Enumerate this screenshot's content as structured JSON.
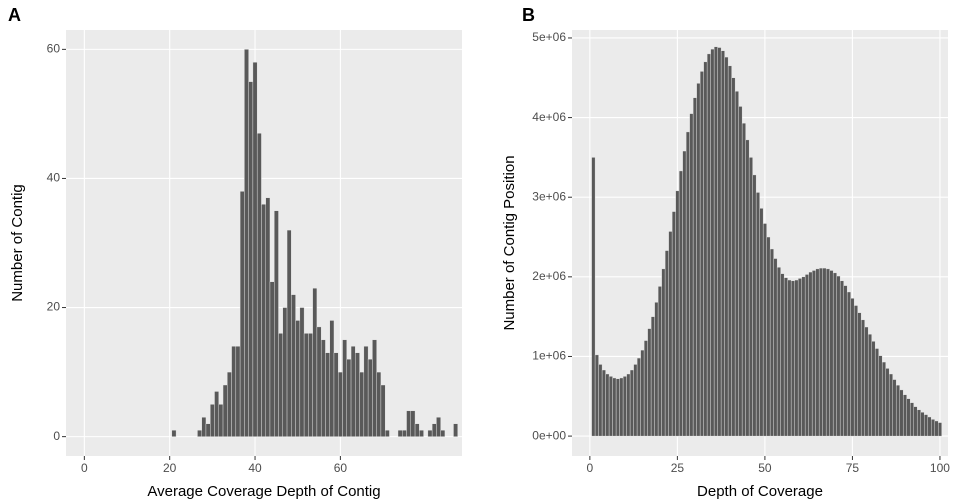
{
  "chart_data": [
    {
      "type": "histogram",
      "label": "A",
      "x_label": "Average Coverage Depth of Contig",
      "y_label": "Number of Contig",
      "color": "#595959",
      "bins": [
        20.5,
        21.5,
        22.5,
        23.5,
        24.5,
        25.5,
        26.5,
        27.5,
        28.5,
        29.5,
        30.5,
        31.5,
        32.5,
        33.5,
        34.5,
        35.5,
        36.5,
        37.5,
        38.5,
        39.5,
        40.5,
        41.5,
        42.5,
        43.5,
        44.5,
        45.5,
        46.5,
        47.5,
        48.5,
        49.5,
        50.5,
        51.5,
        52.5,
        53.5,
        54.5,
        55.5,
        56.5,
        57.5,
        58.5,
        59.5,
        60.5,
        61.5,
        62.5,
        63.5,
        64.5,
        65.5,
        66.5,
        67.5,
        68.5,
        69.5,
        70.5,
        71.5,
        72.5,
        73.5,
        74.5,
        75.5,
        76.5,
        77.5,
        78.5,
        79.5,
        80.5,
        81.5,
        82.5,
        83.5,
        84.5,
        85.5,
        86.5,
        87.5
      ],
      "values": [
        1,
        0,
        0,
        0,
        0,
        0,
        1,
        3,
        2,
        5,
        7,
        5,
        8,
        10,
        14,
        14,
        38,
        60,
        55,
        58,
        47,
        36,
        37,
        24,
        35,
        16,
        20,
        32,
        22,
        18,
        20,
        16,
        16,
        23,
        17,
        15,
        13,
        18,
        13,
        10,
        15,
        12,
        14,
        13,
        10,
        14,
        12,
        15,
        10,
        8,
        1,
        0,
        0,
        1,
        1,
        4,
        4,
        2,
        1,
        0,
        1,
        2,
        3,
        1,
        0,
        0,
        2
      ],
      "xlim": [
        -4.3,
        88.5
      ],
      "xticks": [
        0,
        20,
        40,
        60
      ],
      "ylim": [
        -3,
        63
      ],
      "yticks": [
        0,
        20,
        40,
        60
      ],
      "grid": true
    },
    {
      "type": "histogram",
      "label": "B",
      "x_label": "Depth of Coverage",
      "y_label": "Number of Contig Position",
      "color": "#595959",
      "bins": [
        0.5,
        1.5,
        2.5,
        3.5,
        4.5,
        5.5,
        6.5,
        7.5,
        8.5,
        9.5,
        10.5,
        11.5,
        12.5,
        13.5,
        14.5,
        15.5,
        16.5,
        17.5,
        18.5,
        19.5,
        20.5,
        21.5,
        22.5,
        23.5,
        24.5,
        25.5,
        26.5,
        27.5,
        28.5,
        29.5,
        30.5,
        31.5,
        32.5,
        33.5,
        34.5,
        35.5,
        36.5,
        37.5,
        38.5,
        39.5,
        40.5,
        41.5,
        42.5,
        43.5,
        44.5,
        45.5,
        46.5,
        47.5,
        48.5,
        49.5,
        50.5,
        51.5,
        52.5,
        53.5,
        54.5,
        55.5,
        56.5,
        57.5,
        58.5,
        59.5,
        60.5,
        61.5,
        62.5,
        63.5,
        64.5,
        65.5,
        66.5,
        67.5,
        68.5,
        69.5,
        70.5,
        71.5,
        72.5,
        73.5,
        74.5,
        75.5,
        76.5,
        77.5,
        78.5,
        79.5,
        80.5,
        81.5,
        82.5,
        83.5,
        84.5,
        85.5,
        86.5,
        87.5,
        88.5,
        89.5,
        90.5,
        91.5,
        92.5,
        93.5,
        94.5,
        95.5,
        96.5,
        97.5,
        98.5,
        99.5,
        100.5
      ],
      "values": [
        3500000,
        1020000,
        900000,
        830000,
        780000,
        750000,
        730000,
        720000,
        730000,
        750000,
        780000,
        830000,
        900000,
        980000,
        1080000,
        1200000,
        1350000,
        1500000,
        1680000,
        1880000,
        2100000,
        2330000,
        2570000,
        2820000,
        3080000,
        3330000,
        3580000,
        3820000,
        4050000,
        4250000,
        4430000,
        4580000,
        4700000,
        4800000,
        4860000,
        4890000,
        4880000,
        4840000,
        4760000,
        4650000,
        4500000,
        4330000,
        4140000,
        3930000,
        3720000,
        3500000,
        3280000,
        3060000,
        2860000,
        2670000,
        2500000,
        2350000,
        2230000,
        2120000,
        2040000,
        1990000,
        1960000,
        1950000,
        1960000,
        1980000,
        2000000,
        2030000,
        2060000,
        2080000,
        2100000,
        2110000,
        2110000,
        2100000,
        2080000,
        2050000,
        2010000,
        1950000,
        1890000,
        1810000,
        1730000,
        1640000,
        1550000,
        1460000,
        1370000,
        1280000,
        1190000,
        1100000,
        1010000,
        930000,
        850000,
        780000,
        710000,
        640000,
        580000,
        520000,
        470000,
        420000,
        370000,
        330000,
        300000,
        270000,
        240000,
        210000,
        190000,
        170000
      ],
      "xlim": [
        -5.1,
        102.3
      ],
      "xticks": [
        0,
        25,
        50,
        75,
        100
      ],
      "ylim": [
        -250000,
        5100000
      ],
      "yticks": [
        {
          "value": 0,
          "label": "0e+00"
        },
        {
          "value": 1000000,
          "label": "1e+06"
        },
        {
          "value": 2000000,
          "label": "2e+06"
        },
        {
          "value": 3000000,
          "label": "3e+06"
        },
        {
          "value": 4000000,
          "label": "4e+06"
        },
        {
          "value": 5000000,
          "label": "5e+06"
        }
      ],
      "grid": true
    }
  ]
}
